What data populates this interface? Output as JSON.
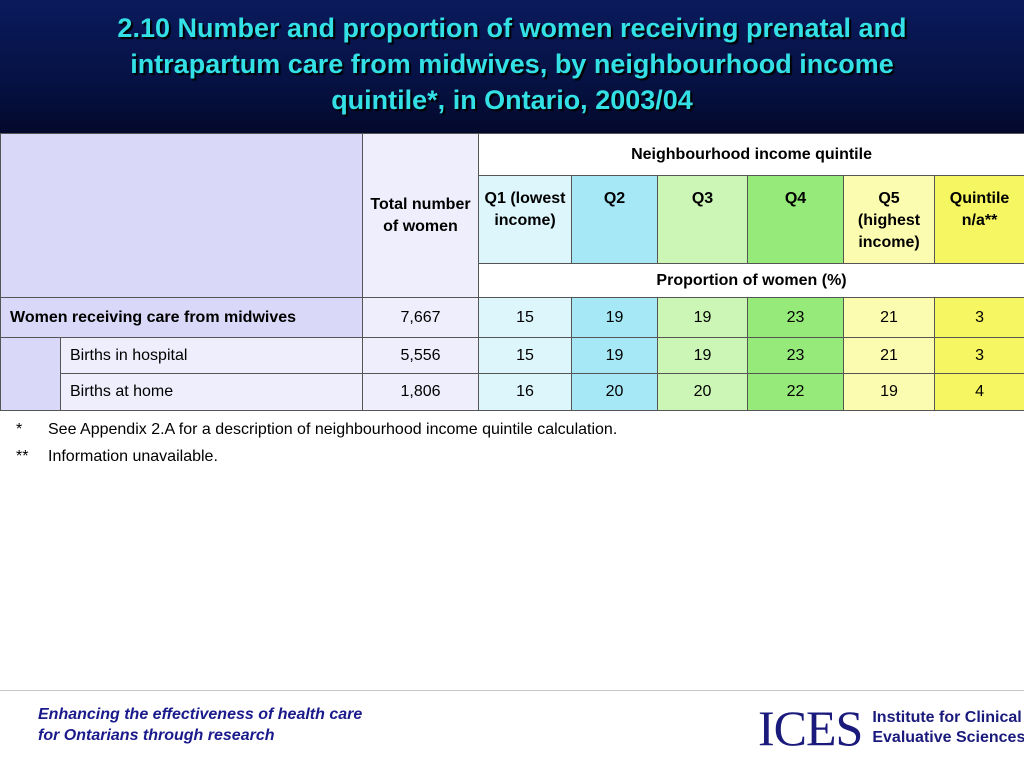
{
  "title": {
    "lines": [
      "2.10  Number and proportion of women receiving prenatal and",
      "intrapartum care from midwives, by neighbourhood income",
      "quintile*, in Ontario, 2003/04"
    ]
  },
  "table": {
    "group_header": "Neighbourhood income quintile",
    "total_header": "Total number of women",
    "proportion_header": "Proportion of women (%)",
    "columns": {
      "q1": "Q1 (lowest income)",
      "q2": "Q2",
      "q3": "Q3",
      "q4": "Q4",
      "q5": "Q5 (highest income)",
      "na": "Quintile n/a**"
    },
    "rows": [
      {
        "label": "Women receiving care from midwives",
        "total": "7,667",
        "q1": "15",
        "q2": "19",
        "q3": "19",
        "q4": "23",
        "q5": "21",
        "na": "3"
      },
      {
        "label": "Births in hospital",
        "total": "5,556",
        "q1": "15",
        "q2": "19",
        "q3": "19",
        "q4": "23",
        "q5": "21",
        "na": "3"
      },
      {
        "label": "Births at home",
        "total": "1,806",
        "q1": "16",
        "q2": "20",
        "q3": "20",
        "q4": "22",
        "q5": "19",
        "na": "4"
      }
    ]
  },
  "notes": [
    {
      "mark": "*",
      "text": "See Appendix 2.A for a description of neighbourhood income quintile calculation."
    },
    {
      "mark": "**",
      "text": "Information unavailable."
    }
  ],
  "footer": {
    "tagline_lines": [
      "Enhancing the effectiveness of health care",
      "for Ontarians through research"
    ],
    "logo_mark": "ICES",
    "logo_text_lines": [
      "Institute for Clinical",
      "Evaluative Sciences"
    ]
  }
}
